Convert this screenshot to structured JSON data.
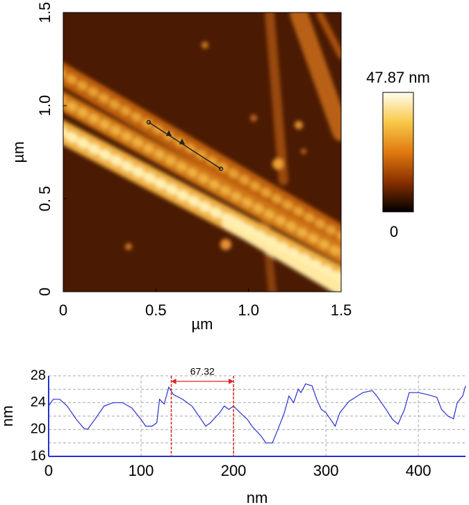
{
  "chart_data": [
    {
      "type": "image",
      "xlabel": "µm",
      "ylabel": "µm",
      "xlim": [
        0,
        1.5
      ],
      "ylim": [
        0,
        1.5
      ],
      "xticks": [
        0,
        0.5,
        {
          "value": 1,
          "label": "1.0"
        },
        1.5
      ],
      "yticks": [
        0,
        {
          "value": 0.5,
          "label": "0. 5"
        },
        {
          "value": 1,
          "label": "1.0"
        },
        1.5
      ],
      "colorbar_ticks": [
        {
          "value": 47.87,
          "label": "47.87 nm"
        },
        0
      ]
    },
    {
      "type": "line",
      "xlabel": "nm",
      "ylabel": "nm",
      "xlim": [
        0,
        451
      ],
      "ylim": [
        16,
        28
      ],
      "xticks": [
        0,
        100,
        200,
        300,
        400
      ],
      "yticks": [
        16,
        20,
        24,
        28
      ],
      "yminor": [
        18,
        22,
        26
      ],
      "grid": true,
      "color": "#2630d0",
      "annotation": {
        "x": [
          132.68,
          200
        ],
        "label": "67.32",
        "color": "#e02020"
      },
      "x": [
        0,
        5,
        12,
        20,
        30,
        38,
        42,
        50,
        60,
        70,
        80,
        90,
        100,
        105,
        112,
        117,
        120,
        125,
        130,
        135,
        145,
        155,
        165,
        170,
        175,
        185,
        190,
        195,
        200,
        205,
        215,
        220,
        230,
        235,
        242,
        248,
        255,
        260,
        265,
        270,
        273,
        278,
        285,
        290,
        295,
        300,
        305,
        310,
        315,
        325,
        340,
        350,
        355,
        360,
        365,
        372,
        378,
        385,
        390,
        400,
        410,
        420,
        425,
        432,
        438,
        442,
        448,
        451
      ],
      "values": [
        23.5,
        24.5,
        24.5,
        23.5,
        21.5,
        20.2,
        20,
        21.5,
        23.5,
        24,
        24,
        23.2,
        21.5,
        20.5,
        20.5,
        21,
        24.5,
        23.8,
        26.3,
        25.2,
        24.5,
        23.5,
        21.5,
        20.5,
        21,
        22.5,
        23.5,
        23,
        23.5,
        22.8,
        21.5,
        20.5,
        19,
        18,
        18,
        20,
        22.5,
        25,
        24,
        26,
        25.5,
        26.8,
        26.5,
        24.5,
        23,
        22.5,
        21.5,
        20.5,
        22.5,
        24.2,
        25.5,
        25.8,
        25,
        24,
        23,
        21.5,
        20.8,
        23,
        25.5,
        25.5,
        25.2,
        24.8,
        23,
        22,
        21.6,
        24,
        25,
        26.5
      ]
    }
  ]
}
